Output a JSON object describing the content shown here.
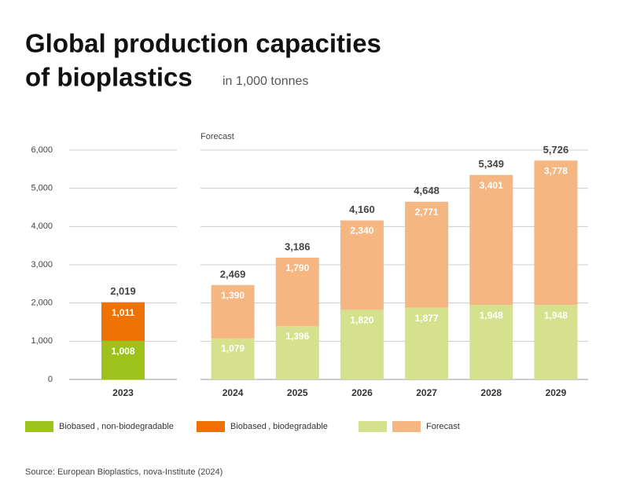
{
  "chart_data": {
    "type": "stacked_bar",
    "title_lines": [
      "Global production capacities",
      "of bioplastics"
    ],
    "subtitle": "in 1,000 tonnes",
    "annotation": "Forecast",
    "categories": [
      "2023",
      "2024",
      "2025",
      "2026",
      "2027",
      "2028",
      "2029"
    ],
    "series": [
      {
        "name": "Biobased , non-biodegradable",
        "color": "#9dc21c",
        "colors": [
          "#9dc21c",
          "#d6e18e",
          "#d6e18e",
          "#d6e18e",
          "#d6e18e",
          "#d6e18e",
          "#d6e18e"
        ],
        "values": [
          1008,
          1079,
          1396,
          1820,
          1877,
          1948,
          1948
        ],
        "value_labels": [
          "1,008",
          "1,079",
          "1,396",
          "1,820",
          "1,877",
          "1,948",
          "1,948"
        ]
      },
      {
        "name": "Biobased , biodegradable",
        "color": "#ee7203",
        "colors": [
          "#ee7203",
          "#f5b681",
          "#f5b681",
          "#f5b681",
          "#f5b681",
          "#f5b681",
          "#f5b681"
        ],
        "values": [
          1011,
          1390,
          1790,
          2340,
          2771,
          3401,
          3778
        ],
        "value_labels": [
          "1,011",
          "1,390",
          "1,790",
          "2,340",
          "2,771",
          "3,401",
          "3,778"
        ]
      }
    ],
    "totals": [
      2019,
      2469,
      3186,
      4160,
      4648,
      5349,
      5726
    ],
    "totals_labels": [
      "2,019",
      "2,469",
      "3,186",
      "4,160",
      "4,648",
      "5,349",
      "5,726"
    ],
    "forecast_legend": {
      "label": "Forecast",
      "colors": [
        "#d6e18e",
        "#f5b681"
      ]
    },
    "ylim": [
      0,
      6000
    ],
    "yticks": [
      0,
      {
        "value": 1000,
        "label": "1,000"
      },
      {
        "value": 2000,
        "label": "2,000"
      },
      {
        "value": 3000,
        "label": "3,000"
      },
      {
        "value": 4000,
        "label": "4,000"
      },
      {
        "value": 5000,
        "label": "5,000"
      },
      {
        "value": 6000,
        "label": "6,000"
      }
    ],
    "grid": true,
    "source": "Source: European Bioplastics, nova-Institute (2024)"
  }
}
